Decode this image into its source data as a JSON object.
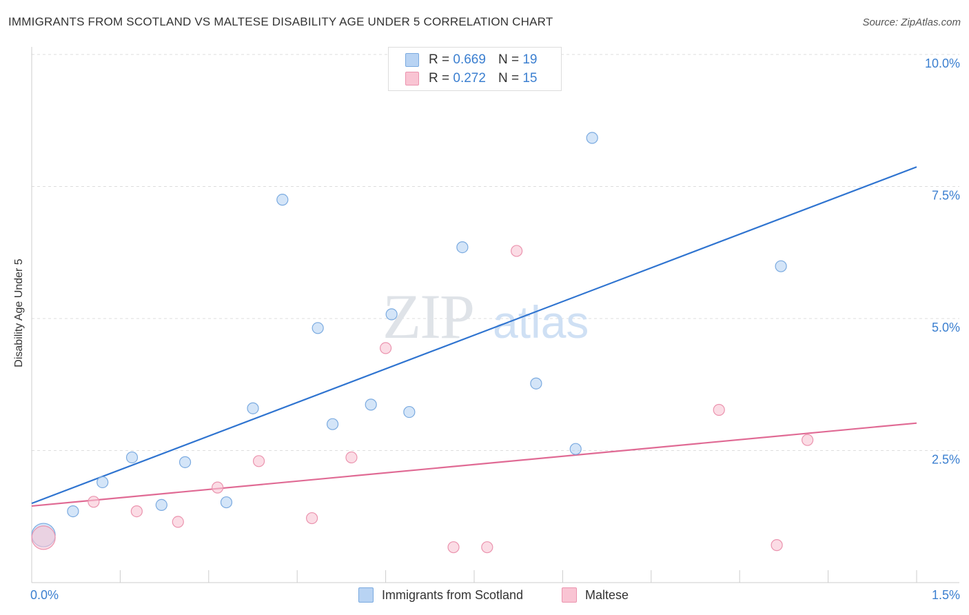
{
  "title": "IMMIGRANTS FROM SCOTLAND VS MALTESE DISABILITY AGE UNDER 5 CORRELATION CHART",
  "source": "Source: ZipAtlas.com",
  "watermark": {
    "zip": "ZIP",
    "atlas": "atlas"
  },
  "legend_top": {
    "r_label": "R =",
    "n_label": "N =",
    "rows": [
      {
        "r": "0.669",
        "n": "19"
      },
      {
        "r": "0.272",
        "n": "15"
      }
    ]
  },
  "colors": {
    "blue_fill": "#b8d3f3",
    "blue_stroke": "#7aaae0",
    "blue_line": "#2f74d0",
    "pink_fill": "#f9c4d3",
    "pink_stroke": "#eb93ae",
    "pink_line": "#e06a94",
    "accent_text": "#3b7fd0"
  },
  "chart_data": {
    "type": "scatter",
    "title": "IMMIGRANTS FROM SCOTLAND VS MALTESE DISABILITY AGE UNDER 5 CORRELATION CHART",
    "xlabel": "",
    "ylabel": "Disability Age Under 5",
    "xlim": [
      0.0,
      1.5
    ],
    "ylim": [
      0.0,
      10.0
    ],
    "x_tick_labels": [
      "0.0%",
      "1.5%"
    ],
    "y_ticks": [
      2.5,
      5.0,
      7.5,
      10.0
    ],
    "y_tick_labels": [
      "2.5%",
      "5.0%",
      "7.5%",
      "10.0%"
    ],
    "grid": true,
    "series": [
      {
        "name": "Immigrants from Scotland",
        "color": "blue",
        "points": [
          {
            "x": 0.02,
            "y": 0.9,
            "big": true
          },
          {
            "x": 0.07,
            "y": 1.35
          },
          {
            "x": 0.12,
            "y": 1.9
          },
          {
            "x": 0.17,
            "y": 2.37
          },
          {
            "x": 0.22,
            "y": 1.47
          },
          {
            "x": 0.26,
            "y": 2.28
          },
          {
            "x": 0.33,
            "y": 1.52
          },
          {
            "x": 0.375,
            "y": 3.3
          },
          {
            "x": 0.425,
            "y": 7.25
          },
          {
            "x": 0.485,
            "y": 4.82
          },
          {
            "x": 0.51,
            "y": 3.0
          },
          {
            "x": 0.575,
            "y": 3.37
          },
          {
            "x": 0.61,
            "y": 5.08
          },
          {
            "x": 0.64,
            "y": 3.23
          },
          {
            "x": 0.73,
            "y": 6.35
          },
          {
            "x": 0.855,
            "y": 3.77
          },
          {
            "x": 0.922,
            "y": 2.53
          },
          {
            "x": 0.95,
            "y": 8.42
          },
          {
            "x": 1.27,
            "y": 5.99
          }
        ],
        "trend": {
          "x": [
            0.0,
            1.5
          ],
          "y": [
            1.5,
            7.87
          ]
        }
      },
      {
        "name": "Maltese",
        "color": "pink",
        "points": [
          {
            "x": 0.02,
            "y": 0.85,
            "big": true
          },
          {
            "x": 0.105,
            "y": 1.53
          },
          {
            "x": 0.178,
            "y": 1.35
          },
          {
            "x": 0.248,
            "y": 1.15
          },
          {
            "x": 0.315,
            "y": 1.8
          },
          {
            "x": 0.385,
            "y": 2.3
          },
          {
            "x": 0.475,
            "y": 1.22
          },
          {
            "x": 0.542,
            "y": 2.37
          },
          {
            "x": 0.6,
            "y": 4.44
          },
          {
            "x": 0.715,
            "y": 0.67
          },
          {
            "x": 0.772,
            "y": 0.67
          },
          {
            "x": 0.822,
            "y": 6.28
          },
          {
            "x": 1.165,
            "y": 3.27
          },
          {
            "x": 1.263,
            "y": 0.71
          },
          {
            "x": 1.315,
            "y": 2.7
          }
        ],
        "trend": {
          "x": [
            0.0,
            1.5
          ],
          "y": [
            1.45,
            3.02
          ]
        }
      }
    ]
  }
}
